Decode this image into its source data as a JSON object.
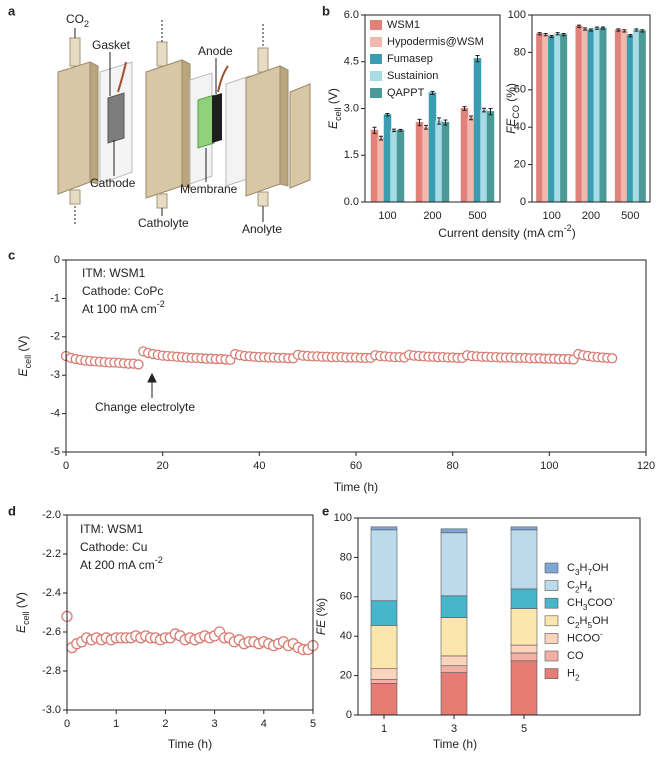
{
  "panel_labels": [
    "a",
    "b",
    "c",
    "d",
    "e"
  ],
  "diagram": {
    "labels": [
      "CO2",
      "Gasket",
      "Anode",
      "Cathode",
      "Membrane",
      "Catholyte",
      "Anolyte"
    ]
  },
  "chart_data": [
    {
      "type": "bar",
      "categories": [
        "100",
        "200",
        "500"
      ],
      "series": [
        {
          "name": "WSM1",
          "color": "#e0817a",
          "values": [
            2.3,
            2.55,
            3.0
          ],
          "errors": [
            0.1,
            0.1,
            0.06
          ]
        },
        {
          "name": "Hypodermis@WSM",
          "color": "#f2b7ad",
          "values": [
            2.05,
            2.4,
            2.7
          ],
          "errors": [
            0.06,
            0.06,
            0.06
          ]
        },
        {
          "name": "Fumasep",
          "color": "#3a9db0",
          "values": [
            2.8,
            3.5,
            4.6
          ],
          "errors": [
            0.04,
            0.05,
            0.1
          ]
        },
        {
          "name": "Sustainion",
          "color": "#a7dbe6",
          "values": [
            2.3,
            2.6,
            2.95
          ],
          "errors": [
            0.04,
            0.1,
            0.06
          ]
        },
        {
          "name": "QAPPT",
          "color": "#4b9a97",
          "values": [
            2.3,
            2.55,
            2.9
          ],
          "errors": [
            0.03,
            0.08,
            0.1
          ]
        }
      ],
      "ylim": [
        0,
        6
      ],
      "yticks": [
        {
          "value": 0,
          "label": "0.0"
        },
        1.5,
        {
          "value": 3,
          "label": "3.0"
        },
        4.5,
        {
          "value": 6,
          "label": "6.0"
        }
      ],
      "ylabel": {
        "text": "E",
        "sub": "cell",
        "unit": " (V)"
      },
      "xlabel": {
        "text": "Current density (mA cm",
        "sup": "-2",
        "unit": ")"
      },
      "legend": "upper left"
    },
    {
      "type": "bar",
      "categories": [
        "100",
        "200",
        "500"
      ],
      "series": [
        {
          "color": "#e0817a",
          "values": [
            90,
            94,
            92
          ],
          "errors": [
            0.6,
            0.6,
            0.6
          ]
        },
        {
          "color": "#f2b7ad",
          "values": [
            89.5,
            92.5,
            91.5
          ],
          "errors": [
            0.6,
            0.6,
            0.6
          ]
        },
        {
          "color": "#3a9db0",
          "values": [
            88.5,
            92,
            89
          ],
          "errors": [
            0.6,
            0.6,
            0.6
          ]
        },
        {
          "color": "#a7dbe6",
          "values": [
            90,
            93,
            92
          ],
          "errors": [
            0.6,
            0.6,
            0.6
          ]
        },
        {
          "color": "#4b9a97",
          "values": [
            89.5,
            93,
            91.5
          ],
          "errors": [
            0.6,
            0.6,
            0.6
          ]
        }
      ],
      "ylim": [
        0,
        100
      ],
      "yticks": [
        0,
        20,
        40,
        60,
        80,
        100
      ],
      "ylabel": {
        "text": "FE",
        "sub": "CO",
        "unit": " (%)"
      }
    },
    {
      "type": "scatter",
      "x": [
        0,
        1,
        2,
        3,
        4,
        5,
        6,
        7,
        8,
        9,
        10,
        11,
        12,
        13,
        14,
        15,
        16,
        17,
        18,
        19,
        20,
        21,
        22,
        23,
        24,
        25,
        26,
        27,
        28,
        29,
        30,
        31,
        32,
        33,
        34,
        35,
        36,
        37,
        38,
        39,
        40,
        41,
        42,
        43,
        44,
        45,
        46,
        47,
        48,
        49,
        50,
        51,
        52,
        53,
        54,
        55,
        56,
        57,
        58,
        59,
        60,
        61,
        62,
        63,
        64,
        65,
        66,
        67,
        68,
        69,
        70,
        71,
        72,
        73,
        74,
        75,
        76,
        77,
        78,
        79,
        80,
        81,
        82,
        83,
        84,
        85,
        86,
        87,
        88,
        89,
        90,
        91,
        92,
        93,
        94,
        95,
        96,
        97,
        98,
        99,
        100,
        101,
        102,
        103,
        104,
        105,
        106,
        107,
        108,
        109,
        110,
        111,
        112,
        113
      ],
      "series": [
        {
          "color": "#d97d73",
          "values": [
            -2.5,
            -2.55,
            -2.58,
            -2.6,
            -2.62,
            -2.63,
            -2.64,
            -2.65,
            -2.66,
            -2.67,
            -2.67,
            -2.68,
            -2.69,
            -2.7,
            -2.7,
            -2.72,
            -2.38,
            -2.42,
            -2.45,
            -2.47,
            -2.49,
            -2.5,
            -2.51,
            -2.52,
            -2.53,
            -2.54,
            -2.55,
            -2.55,
            -2.56,
            -2.57,
            -2.57,
            -2.58,
            -2.58,
            -2.59,
            -2.6,
            -2.45,
            -2.48,
            -2.5,
            -2.51,
            -2.52,
            -2.53,
            -2.53,
            -2.54,
            -2.54,
            -2.55,
            -2.55,
            -2.56,
            -2.56,
            -2.47,
            -2.49,
            -2.5,
            -2.51,
            -2.51,
            -2.52,
            -2.52,
            -2.53,
            -2.53,
            -2.53,
            -2.54,
            -2.54,
            -2.54,
            -2.55,
            -2.55,
            -2.55,
            -2.48,
            -2.5,
            -2.51,
            -2.52,
            -2.53,
            -2.53,
            -2.54,
            -2.47,
            -2.49,
            -2.5,
            -2.51,
            -2.52,
            -2.52,
            -2.53,
            -2.53,
            -2.54,
            -2.54,
            -2.55,
            -2.55,
            -2.48,
            -2.5,
            -2.51,
            -2.52,
            -2.52,
            -2.53,
            -2.53,
            -2.54,
            -2.54,
            -2.54,
            -2.55,
            -2.55,
            -2.55,
            -2.56,
            -2.56,
            -2.56,
            -2.57,
            -2.57,
            -2.57,
            -2.58,
            -2.58,
            -2.58,
            -2.59,
            -2.45,
            -2.48,
            -2.5,
            -2.52,
            -2.53,
            -2.54,
            -2.55,
            -2.56
          ]
        }
      ],
      "xlim": [
        0,
        120
      ],
      "xticks": [
        0,
        20,
        40,
        60,
        80,
        100,
        120
      ],
      "ylim": [
        -5,
        0
      ],
      "yticks": [
        0,
        -1,
        -2,
        -3,
        -4,
        -5
      ],
      "xlabel": {
        "text": "Time (h)"
      },
      "ylabel": {
        "text": "E",
        "sub": "cell",
        "unit": " (V)"
      },
      "annotations": [
        {
          "text": "ITM: WSM1"
        },
        {
          "text": "Cathode: CoPc"
        },
        {
          "text": "At 100 mA cm",
          "sup": "-2"
        },
        {
          "text": "Change electrolyte"
        }
      ]
    },
    {
      "type": "scatter",
      "x": [
        0,
        0.1,
        0.2,
        0.3,
        0.4,
        0.5,
        0.6,
        0.7,
        0.8,
        0.9,
        1,
        1.1,
        1.2,
        1.3,
        1.4,
        1.5,
        1.6,
        1.7,
        1.8,
        1.9,
        2,
        2.1,
        2.2,
        2.3,
        2.4,
        2.5,
        2.6,
        2.7,
        2.8,
        2.9,
        3,
        3.1,
        3.2,
        3.3,
        3.4,
        3.5,
        3.6,
        3.7,
        3.8,
        3.9,
        4,
        4.1,
        4.2,
        4.3,
        4.4,
        4.5,
        4.6,
        4.7,
        4.8,
        4.9,
        5
      ],
      "series": [
        {
          "color": "#d97d73",
          "values": [
            -2.52,
            -2.68,
            -2.66,
            -2.65,
            -2.63,
            -2.64,
            -2.63,
            -2.64,
            -2.63,
            -2.64,
            -2.63,
            -2.63,
            -2.63,
            -2.63,
            -2.62,
            -2.63,
            -2.62,
            -2.63,
            -2.63,
            -2.64,
            -2.63,
            -2.63,
            -2.61,
            -2.62,
            -2.64,
            -2.63,
            -2.64,
            -2.63,
            -2.62,
            -2.63,
            -2.62,
            -2.6,
            -2.63,
            -2.63,
            -2.65,
            -2.64,
            -2.66,
            -2.65,
            -2.65,
            -2.66,
            -2.65,
            -2.66,
            -2.67,
            -2.66,
            -2.65,
            -2.67,
            -2.66,
            -2.68,
            -2.69,
            -2.69,
            -2.67
          ]
        }
      ],
      "xlim": [
        0,
        5
      ],
      "xticks": [
        0,
        1,
        2,
        3,
        4,
        5
      ],
      "ylim": [
        -3,
        -2
      ],
      "yticks": [
        {
          "value": -2,
          "label": "-2.0"
        },
        -2.2,
        -2.4,
        -2.6,
        -2.8,
        {
          "value": -3,
          "label": "-3.0"
        }
      ],
      "xlabel": {
        "text": "Time (h)"
      },
      "ylabel": {
        "text": "E",
        "sub": "cell",
        "unit": " (V)"
      },
      "annotations": [
        {
          "text": "ITM: WSM1"
        },
        {
          "text": "Cathode: Cu"
        },
        {
          "text": "At 200 mA cm",
          "sup": "-2"
        }
      ]
    },
    {
      "type": "stacked_bar",
      "categories": [
        "1",
        "3",
        "5"
      ],
      "series": [
        {
          "name": "H2",
          "color": "#e57d75",
          "values": [
            16,
            21.5,
            27.5
          ]
        },
        {
          "name": "CO",
          "color": "#f5b0a5",
          "values": [
            2,
            3.5,
            4
          ]
        },
        {
          "name": "HCOO-",
          "color": "#fcd3bc",
          "values": [
            5.5,
            5,
            4
          ]
        },
        {
          "name": "C2H5OH",
          "color": "#fbe6ad",
          "values": [
            22,
            19.5,
            18.5
          ]
        },
        {
          "name": "CH3COO-",
          "color": "#47b5cc",
          "values": [
            12.5,
            11,
            10
          ]
        },
        {
          "name": "C2H4",
          "color": "#bcdaea",
          "values": [
            36,
            32,
            30
          ]
        },
        {
          "name": "C3H7OH",
          "color": "#7ea7d6",
          "values": [
            1.5,
            2,
            1.5
          ]
        }
      ],
      "ylim": [
        0,
        100
      ],
      "yticks": [
        0,
        20,
        40,
        60,
        80,
        100
      ],
      "xlabel": {
        "text": "Time (h)"
      },
      "ylabel": {
        "text": "FE",
        "unit": " (%)"
      },
      "legend": "right"
    }
  ]
}
